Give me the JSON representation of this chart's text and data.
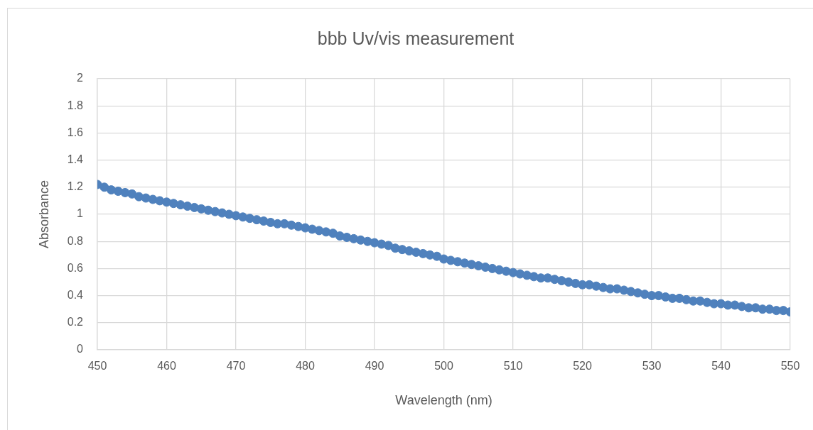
{
  "chart_data": {
    "type": "scatter",
    "title": "bbb Uv/vis measurement",
    "xlabel": "Wavelength (nm)",
    "ylabel": "Absorbance",
    "x": [
      450,
      451,
      452,
      453,
      454,
      455,
      456,
      457,
      458,
      459,
      460,
      461,
      462,
      463,
      464,
      465,
      466,
      467,
      468,
      469,
      470,
      471,
      472,
      473,
      474,
      475,
      476,
      477,
      478,
      479,
      480,
      481,
      482,
      483,
      484,
      485,
      486,
      487,
      488,
      489,
      490,
      491,
      492,
      493,
      494,
      495,
      496,
      497,
      498,
      499,
      500,
      501,
      502,
      503,
      504,
      505,
      506,
      507,
      508,
      509,
      510,
      511,
      512,
      513,
      514,
      515,
      516,
      517,
      518,
      519,
      520,
      521,
      522,
      523,
      524,
      525,
      526,
      527,
      528,
      529,
      530,
      531,
      532,
      533,
      534,
      535,
      536,
      537,
      538,
      539,
      540,
      541,
      542,
      543,
      544,
      545,
      546,
      547,
      548,
      549,
      550
    ],
    "series": [
      {
        "color": "#4f81bd",
        "values": [
          1.22,
          1.2,
          1.18,
          1.17,
          1.16,
          1.15,
          1.13,
          1.12,
          1.11,
          1.1,
          1.09,
          1.08,
          1.07,
          1.06,
          1.05,
          1.04,
          1.03,
          1.02,
          1.01,
          1.0,
          0.99,
          0.98,
          0.97,
          0.96,
          0.95,
          0.94,
          0.93,
          0.93,
          0.92,
          0.91,
          0.9,
          0.89,
          0.88,
          0.87,
          0.86,
          0.84,
          0.83,
          0.82,
          0.81,
          0.8,
          0.79,
          0.78,
          0.77,
          0.75,
          0.74,
          0.73,
          0.72,
          0.71,
          0.7,
          0.69,
          0.67,
          0.66,
          0.65,
          0.64,
          0.63,
          0.62,
          0.61,
          0.6,
          0.59,
          0.58,
          0.57,
          0.56,
          0.55,
          0.54,
          0.53,
          0.53,
          0.52,
          0.51,
          0.5,
          0.49,
          0.48,
          0.48,
          0.47,
          0.46,
          0.45,
          0.45,
          0.44,
          0.43,
          0.42,
          0.41,
          0.4,
          0.4,
          0.39,
          0.38,
          0.38,
          0.37,
          0.36,
          0.36,
          0.35,
          0.34,
          0.34,
          0.33,
          0.33,
          0.32,
          0.31,
          0.31,
          0.3,
          0.3,
          0.29,
          0.29,
          0.28
        ]
      }
    ],
    "xlim": [
      450,
      550
    ],
    "xticks": [
      450,
      460,
      470,
      480,
      490,
      500,
      510,
      520,
      530,
      540,
      550
    ],
    "ylim": [
      0,
      2
    ],
    "yticks": [
      0,
      0.2,
      0.4,
      0.6,
      0.8,
      1,
      1.2,
      1.4,
      1.6,
      1.8,
      2
    ],
    "grid": true,
    "marker": "circle"
  }
}
